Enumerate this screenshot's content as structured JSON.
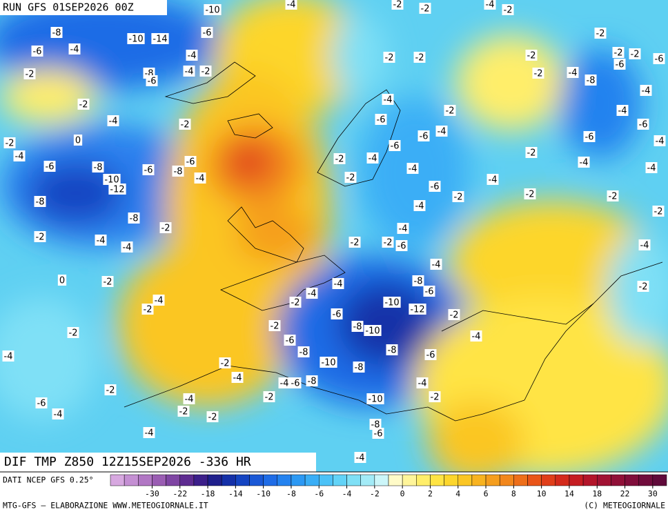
{
  "header": {
    "run": "RUN GFS 01SEP2026 00Z",
    "title": "DIF TMP Z850 12Z15SEP2026 -336 HR"
  },
  "footer": {
    "source": "DATI NCEP GFS 0.25°",
    "credit": "MTG-GFS — ELABORAZIONE WWW.METEOGIORNALE.IT",
    "copyright": "(C) METEOGIORNALE"
  },
  "colorbar": {
    "ticks": [
      -30,
      -22,
      -18,
      -14,
      -10,
      -8,
      -6,
      -4,
      -2,
      0,
      2,
      4,
      6,
      8,
      10,
      14,
      18,
      22,
      30
    ],
    "colors": [
      "#d7a8e0",
      "#c48fd3",
      "#b177c4",
      "#9a5db3",
      "#7f45a3",
      "#5e2c91",
      "#3c1f8a",
      "#1f1f8c",
      "#1430a8",
      "#1444c2",
      "#1a58d6",
      "#1f6ce6",
      "#2482ef",
      "#2c99f4",
      "#3aaef6",
      "#4cc2f7",
      "#62d3f7",
      "#7fe0f6",
      "#a3ebf7",
      "#ccf6f9",
      "#fffbc8",
      "#fff59a",
      "#ffee6a",
      "#ffe444",
      "#fdd62c",
      "#fbc624",
      "#f8b320",
      "#f59e1e",
      "#f2871c",
      "#ee6f1a",
      "#e95519",
      "#e03e1a",
      "#d42a1c",
      "#c51d22",
      "#b3152a",
      "#a11233",
      "#901038",
      "#800e3b",
      "#700c3c",
      "#600a3a"
    ]
  },
  "map_labels": [
    -10,
    -8,
    -10,
    -14,
    -6,
    -6,
    -4,
    -4,
    -2,
    -8,
    -6,
    -4,
    -2,
    -2,
    -4,
    -2,
    0,
    -2,
    -4,
    -6,
    -8,
    -6,
    -8,
    -6,
    -10,
    -12,
    -4,
    -8,
    -8,
    -2,
    -2,
    -4,
    -4,
    0,
    -2,
    -4,
    -2,
    -2,
    -4,
    -2,
    -4,
    -2,
    -6,
    -4,
    -4,
    -2,
    -2,
    -4,
    -2,
    -4,
    -6,
    -8,
    -10,
    -8,
    -10,
    -8,
    -6,
    -4,
    -4,
    -2,
    -6,
    -8,
    -6,
    -8,
    -2,
    -2,
    -4,
    -4,
    -6,
    -8,
    -10,
    -10,
    -12,
    -8,
    -6,
    -2,
    -4,
    -4,
    -2,
    -2,
    -6,
    -4,
    -4,
    -2,
    -6,
    -4,
    -4,
    -2,
    -2,
    -6,
    -6,
    -4,
    -6,
    -4,
    -2,
    -2,
    -2,
    -2,
    -2,
    -4,
    -4,
    -2,
    -2,
    -2,
    -2,
    -4,
    -8,
    -2,
    -6,
    -2,
    -6,
    -4,
    -4,
    -6,
    -6,
    -4,
    -2,
    -4,
    -4,
    -4,
    -2,
    -2,
    -2,
    -4,
    -2
  ]
}
